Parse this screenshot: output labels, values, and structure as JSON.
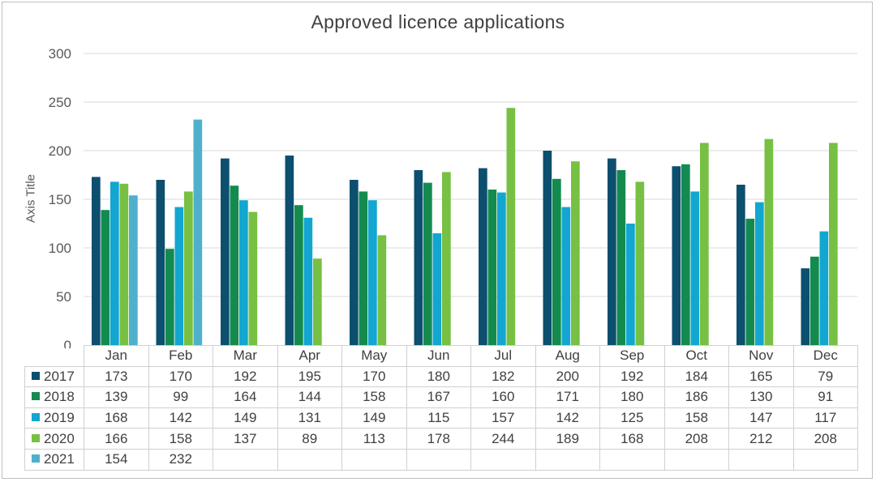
{
  "chart_data": {
    "type": "bar",
    "title": "Approved licence applications",
    "ylabel": "Axis Title",
    "xlabel": "",
    "ylim": [
      0,
      300
    ],
    "yticks": [
      0,
      50,
      100,
      150,
      200,
      250,
      300
    ],
    "grid": true,
    "legend": "data-table",
    "categories": [
      "Jan",
      "Feb",
      "Mar",
      "Apr",
      "May",
      "Jun",
      "Jul",
      "Aug",
      "Sep",
      "Oct",
      "Nov",
      "Dec"
    ],
    "series": [
      {
        "name": "2017",
        "color": "#0d4f6e",
        "values": [
          173,
          170,
          192,
          195,
          170,
          180,
          182,
          200,
          192,
          184,
          165,
          79
        ]
      },
      {
        "name": "2018",
        "color": "#138b4f",
        "values": [
          139,
          99,
          164,
          144,
          158,
          167,
          160,
          171,
          180,
          186,
          130,
          91
        ]
      },
      {
        "name": "2019",
        "color": "#12a6d1",
        "values": [
          168,
          142,
          149,
          131,
          149,
          115,
          157,
          142,
          125,
          158,
          147,
          117
        ]
      },
      {
        "name": "2020",
        "color": "#77c043",
        "values": [
          166,
          158,
          137,
          89,
          113,
          178,
          244,
          189,
          168,
          208,
          212,
          208
        ]
      },
      {
        "name": "2021",
        "color": "#4fb0cc",
        "values": [
          154,
          232,
          null,
          null,
          null,
          null,
          null,
          null,
          null,
          null,
          null,
          null
        ]
      }
    ]
  }
}
